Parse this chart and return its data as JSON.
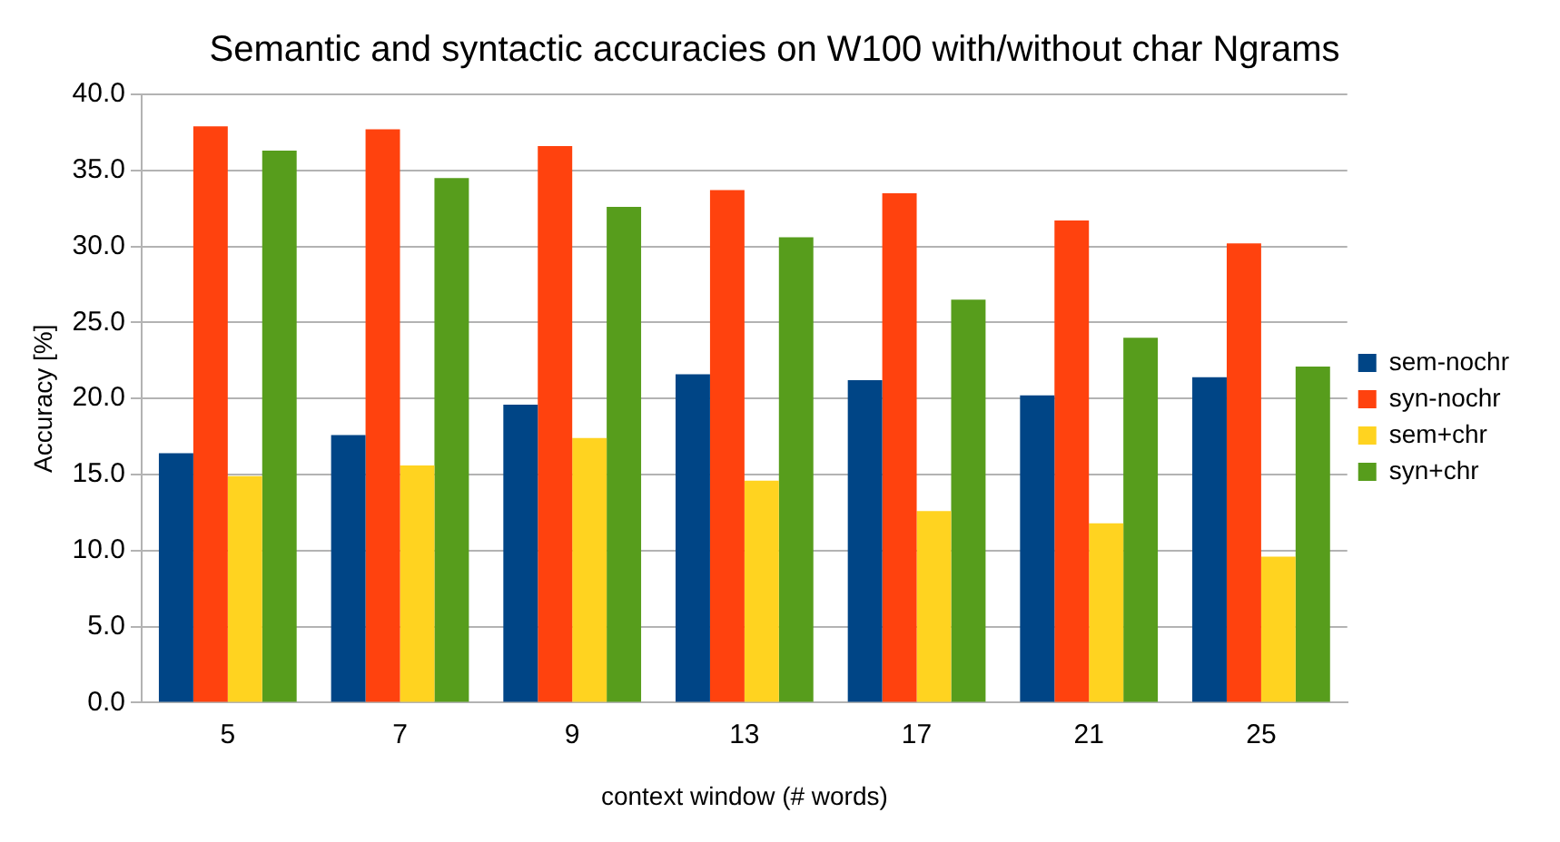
{
  "chart_data": {
    "type": "bar",
    "title": "Semantic and syntactic accuracies on W100 with/without char Ngrams",
    "xlabel": "context window (# words)",
    "ylabel": "Accuracy [%]",
    "categories": [
      "5",
      "7",
      "9",
      "13",
      "17",
      "21",
      "25"
    ],
    "series": [
      {
        "name": "sem-nochr",
        "color": "#004586",
        "values": [
          16.4,
          17.6,
          19.6,
          21.6,
          21.2,
          20.2,
          21.4
        ]
      },
      {
        "name": "syn-nochr",
        "color": "#ff420e",
        "values": [
          37.9,
          37.7,
          36.6,
          33.7,
          33.5,
          31.7,
          30.2
        ]
      },
      {
        "name": "sem+chr",
        "color": "#ffd320",
        "values": [
          14.9,
          15.6,
          17.4,
          14.6,
          12.6,
          11.8,
          9.6
        ]
      },
      {
        "name": "syn+chr",
        "color": "#579d1c",
        "values": [
          36.3,
          34.5,
          32.6,
          30.6,
          26.5,
          24.0,
          22.1
        ]
      }
    ],
    "ylim": [
      0,
      40
    ],
    "yticks": [
      {
        "value": 0,
        "label": "0.0"
      },
      {
        "value": 5,
        "label": "5.0"
      },
      {
        "value": 10,
        "label": "10.0"
      },
      {
        "value": 15,
        "label": "15.0"
      },
      {
        "value": 20,
        "label": "20.0"
      },
      {
        "value": 25,
        "label": "25.0"
      },
      {
        "value": 30,
        "label": "30.0"
      },
      {
        "value": 35,
        "label": "35.0"
      },
      {
        "value": 40,
        "label": "40.0"
      }
    ],
    "grid": "y",
    "legend": "right"
  }
}
